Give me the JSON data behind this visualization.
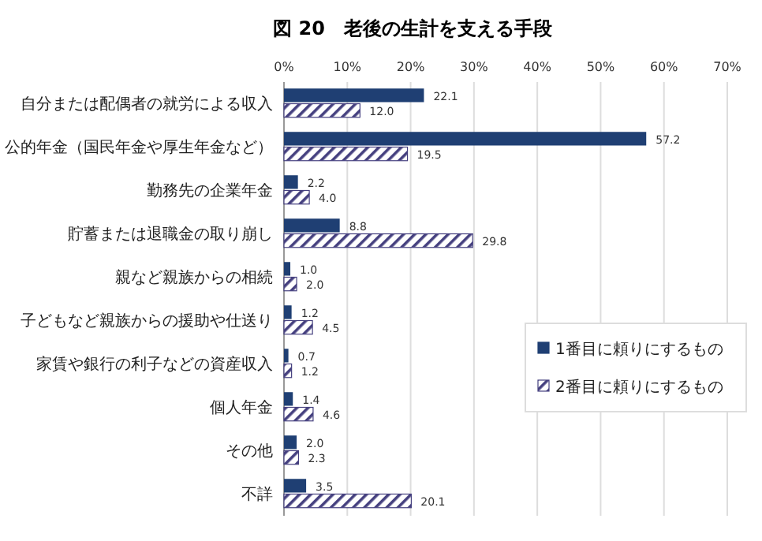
{
  "chart_data": {
    "type": "bar",
    "orientation": "horizontal",
    "title": "図 20　老後の生計を支える手段",
    "categories": [
      "自分または配偶者の就労による収入",
      "公的年金（国民年金や厚生年金など）",
      "勤務先の企業年金",
      "貯蓄または退職金の取り崩し",
      "親など親族からの相続",
      "子どもなど親族からの援助や仕送り",
      "家賃や銀行の利子などの資産収入",
      "個人年金",
      "その他",
      "不詳"
    ],
    "series": [
      {
        "name": "1番目に頼りにするもの",
        "color": "#1f3f73",
        "values": [
          22.1,
          57.2,
          2.2,
          8.8,
          1.0,
          1.2,
          0.7,
          1.4,
          2.0,
          3.5
        ],
        "value_labels": [
          "22.1",
          "57.2",
          "2.2",
          "8.8",
          "1.0",
          "1.2",
          "0.7",
          "1.4",
          "2.0",
          "3.5"
        ]
      },
      {
        "name": "2番目に頼りにするもの",
        "color": "#45407f",
        "values": [
          12.0,
          19.5,
          4.0,
          29.8,
          2.0,
          4.5,
          1.2,
          4.6,
          2.3,
          20.1
        ],
        "value_labels": [
          "12.0",
          "19.5",
          "4.0",
          "29.8",
          "2.0",
          "4.5",
          "1.2",
          "4.6",
          "2.3",
          "20.1"
        ]
      }
    ],
    "xlim": [
      0,
      70
    ],
    "xticks": [
      {
        "value": 0,
        "label": "0%"
      },
      {
        "value": 10,
        "label": "10%"
      },
      {
        "value": 20,
        "label": "20%"
      },
      {
        "value": 30,
        "label": "30%"
      },
      {
        "value": 40,
        "label": "40%"
      },
      {
        "value": 50,
        "label": "50%"
      },
      {
        "value": 60,
        "label": "60%"
      },
      {
        "value": 70,
        "label": "70%"
      }
    ],
    "grid": "x",
    "legend": "bottom right"
  }
}
